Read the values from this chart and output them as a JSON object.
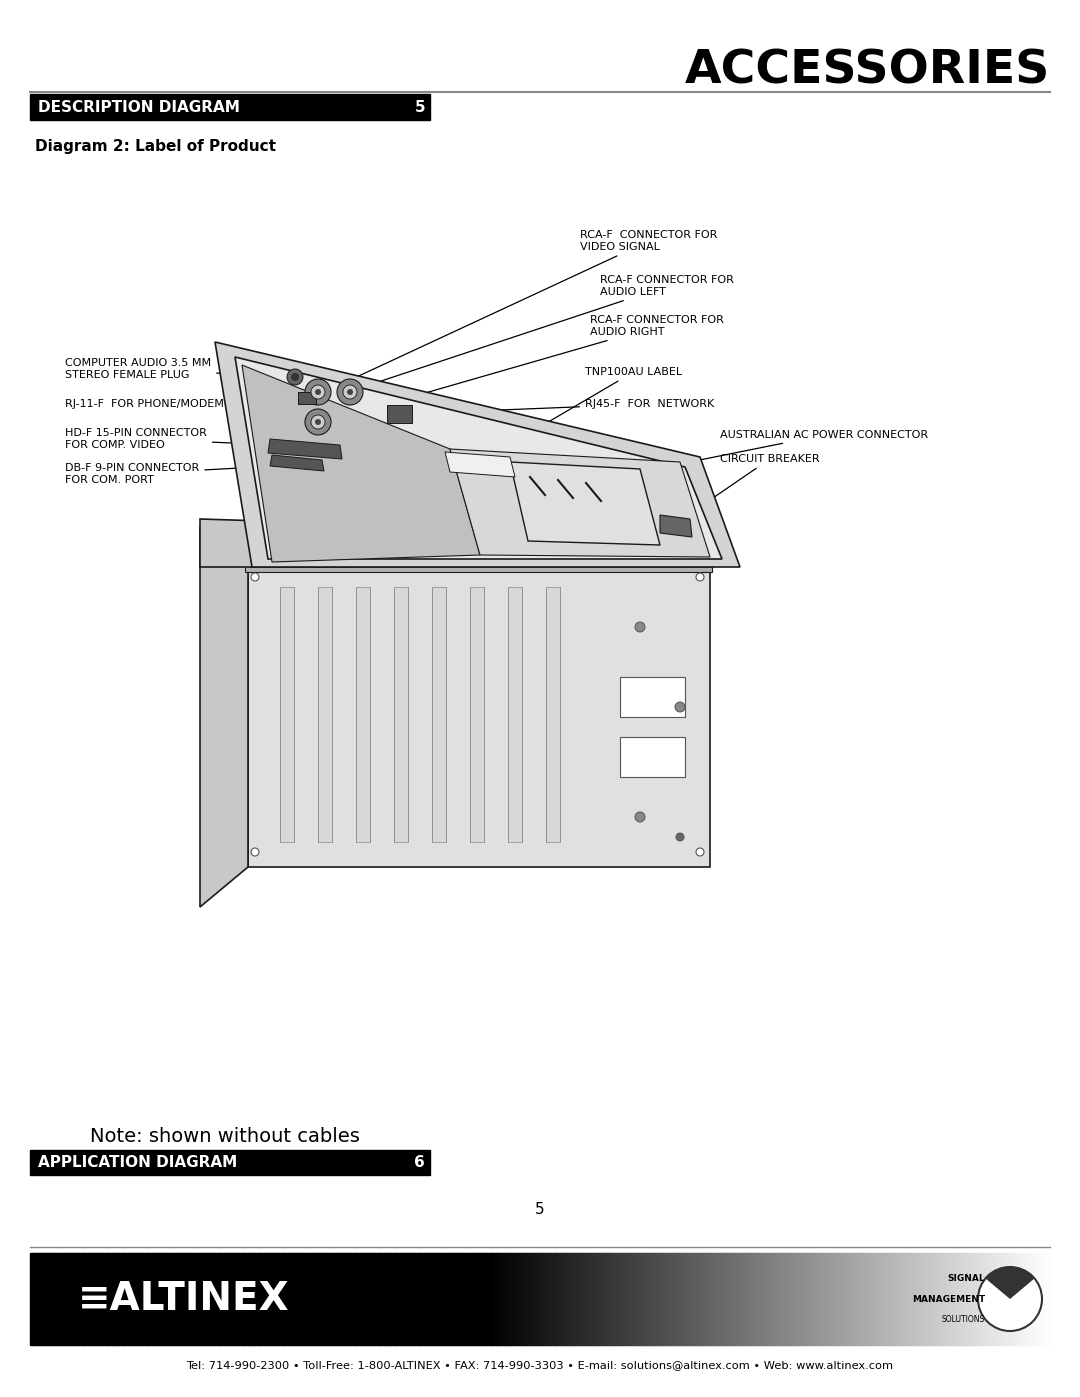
{
  "title": "ACCESSORIES",
  "section_header": "DESCRIPTION DIAGRAM",
  "section_number": "5",
  "diagram_subtitle": "Diagram 2: Label of Product",
  "note_text": "Note: shown without cables",
  "next_section_header": "APPLICATION DIAGRAM",
  "next_section_number": "6",
  "page_number": "5",
  "footer_contact": "Tel: 714-990-2300 • Toll-Free: 1-800-ALTINEX • FAX: 714-990-3303 • E-mail: solutions@altinex.com • Web: www.altinex.com",
  "bg_color": "#ffffff",
  "header_bg": "#000000",
  "header_text_color": "#ffffff",
  "title_color": "#000000",
  "body_text_color": "#000000"
}
